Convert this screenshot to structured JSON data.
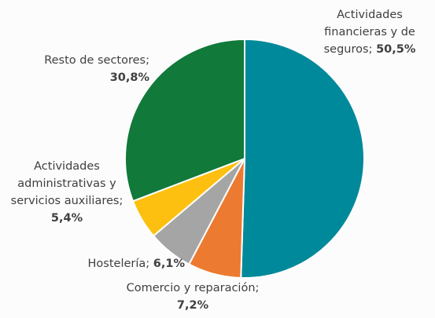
{
  "chart_data": {
    "type": "pie",
    "categories": [
      "Actividades financieras y de seguros",
      "Comercio y reparación",
      "Hostelería",
      "Actividades administrativas y servicios auxiliares",
      "Resto de sectores"
    ],
    "values": [
      50.5,
      7.2,
      6.1,
      5.4,
      30.8
    ],
    "value_labels": [
      "50,5%",
      "7,2%",
      "6,1%",
      "5,4%",
      "30,8%"
    ],
    "label_separator": ";",
    "colors": [
      "#00899a",
      "#ec7a30",
      "#a5a5a5",
      "#fdc010",
      "#11793a"
    ]
  }
}
